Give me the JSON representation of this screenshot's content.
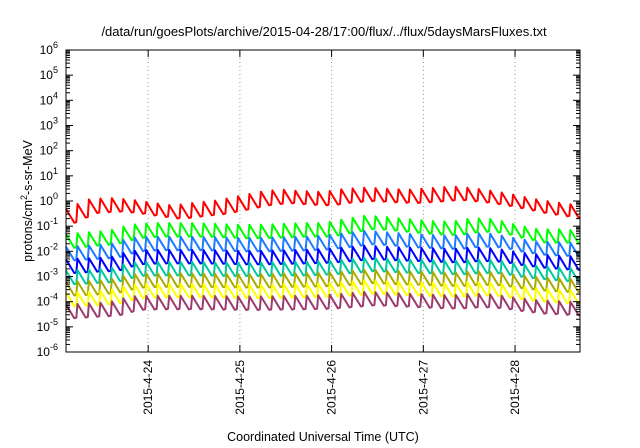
{
  "chart_data": {
    "type": "line",
    "title": "/data/run/goesPlots/archive/2015-04-28/17:00/flux/../flux/5daysMarsFluxes.txt",
    "xlabel": "Coordinated Universal Time (UTC)",
    "ylabel": {
      "prefix": "protons/cm",
      "superscript": "2",
      "suffix": "-s-sr-MeV"
    },
    "y_scale": "log",
    "ylim": [
      1e-06,
      1000000.0
    ],
    "y_ticks": [
      {
        "base": "10",
        "exp": "-6",
        "value": 1e-06
      },
      {
        "base": "10",
        "exp": "-5",
        "value": 1e-05
      },
      {
        "base": "10",
        "exp": "-4",
        "value": 0.0001
      },
      {
        "base": "10",
        "exp": "-3",
        "value": 0.001
      },
      {
        "base": "10",
        "exp": "-2",
        "value": 0.01
      },
      {
        "base": "10",
        "exp": "-1",
        "value": 0.1
      },
      {
        "base": "10",
        "exp": "0",
        "value": 1
      },
      {
        "base": "10",
        "exp": "1",
        "value": 10
      },
      {
        "base": "10",
        "exp": "2",
        "value": 100
      },
      {
        "base": "10",
        "exp": "3",
        "value": 1000
      },
      {
        "base": "10",
        "exp": "4",
        "value": 10000
      },
      {
        "base": "10",
        "exp": "5",
        "value": 100000
      },
      {
        "base": "10",
        "exp": "6",
        "value": 1000000
      }
    ],
    "xlim": [
      "2015-04-23 02:30",
      "2015-04-28 17:00"
    ],
    "x_ticks": [
      {
        "label": "2015-4-24",
        "date": "2015-04-24 00:00"
      },
      {
        "label": "2015-4-25",
        "date": "2015-04-25 00:00"
      },
      {
        "label": "2015-4-26",
        "date": "2015-04-26 00:00"
      },
      {
        "label": "2015-4-27",
        "date": "2015-04-27 00:00"
      },
      {
        "label": "2015-4-28",
        "date": "2015-04-28 00:00"
      }
    ],
    "grid": true,
    "grid_axis": "x",
    "legend": "none",
    "sawtooth_period_hours": 3,
    "series": [
      {
        "color": "#ff0000",
        "level": [
          0.25,
          0.6,
          0.7,
          0.6,
          0.45,
          0.35,
          0.45,
          0.55,
          0.8,
          1.2,
          1.5,
          1.3,
          1.2,
          1.6,
          1.8,
          1.6,
          1.5,
          1.7,
          2.0,
          1.7,
          1.3,
          0.9,
          0.6,
          0.45,
          0.35
        ]
      },
      {
        "color": "#00ff00",
        "level": [
          0.025,
          0.03,
          0.035,
          0.06,
          0.07,
          0.07,
          0.07,
          0.065,
          0.06,
          0.06,
          0.065,
          0.07,
          0.07,
          0.1,
          0.14,
          0.12,
          0.1,
          0.085,
          0.08,
          0.11,
          0.1,
          0.06,
          0.04,
          0.04,
          0.035
        ]
      },
      {
        "color": "#1e7bff",
        "level": [
          0.008,
          0.009,
          0.01,
          0.018,
          0.02,
          0.02,
          0.02,
          0.019,
          0.018,
          0.018,
          0.019,
          0.02,
          0.022,
          0.028,
          0.035,
          0.03,
          0.026,
          0.024,
          0.022,
          0.028,
          0.026,
          0.017,
          0.013,
          0.012,
          0.011
        ]
      },
      {
        "color": "#0000ff",
        "level": [
          0.0025,
          0.0028,
          0.003,
          0.0055,
          0.006,
          0.006,
          0.006,
          0.0058,
          0.0055,
          0.0055,
          0.0058,
          0.006,
          0.0065,
          0.0075,
          0.009,
          0.008,
          0.0075,
          0.007,
          0.0065,
          0.0075,
          0.007,
          0.005,
          0.004,
          0.0035,
          0.0032
        ]
      },
      {
        "color": "#00c8a0",
        "level": [
          0.0009,
          0.001,
          0.0011,
          0.0019,
          0.002,
          0.002,
          0.002,
          0.0019,
          0.0019,
          0.0019,
          0.002,
          0.002,
          0.0022,
          0.0025,
          0.003,
          0.0027,
          0.0025,
          0.0024,
          0.0022,
          0.0025,
          0.0024,
          0.0017,
          0.0014,
          0.0012,
          0.0011
        ]
      },
      {
        "color": "#aaaa00",
        "level": [
          0.00032,
          0.00035,
          0.0004,
          0.00065,
          0.0007,
          0.0007,
          0.0007,
          0.00068,
          0.00066,
          0.00066,
          0.0007,
          0.00072,
          0.00075,
          0.00085,
          0.001,
          0.0009,
          0.00085,
          0.0008,
          0.00075,
          0.00085,
          0.0008,
          0.0006,
          0.0005,
          0.00045,
          0.0004
        ]
      },
      {
        "color": "#ffff00",
        "level": [
          0.00012,
          0.00013,
          0.00015,
          0.00025,
          0.00027,
          0.00027,
          0.00027,
          0.00026,
          0.00025,
          0.00025,
          0.00026,
          0.00027,
          0.00028,
          0.00032,
          0.00038,
          0.00034,
          0.00032,
          0.0003,
          0.00028,
          0.00032,
          0.0003,
          0.00022,
          0.00018,
          0.00016,
          0.00015
        ]
      },
      {
        "color": "#9b3b6e",
        "level": [
          4e-05,
          4.5e-05,
          5e-05,
          8.5e-05,
          9e-05,
          9e-05,
          9e-05,
          8.8e-05,
          8.5e-05,
          8.5e-05,
          8.8e-05,
          9e-05,
          9.5e-05,
          0.00011,
          0.00013,
          0.00012,
          0.00011,
          0.0001,
          9.5e-05,
          0.00011,
          0.0001,
          7.5e-05,
          6e-05,
          5.5e-05,
          5e-05
        ]
      }
    ]
  }
}
